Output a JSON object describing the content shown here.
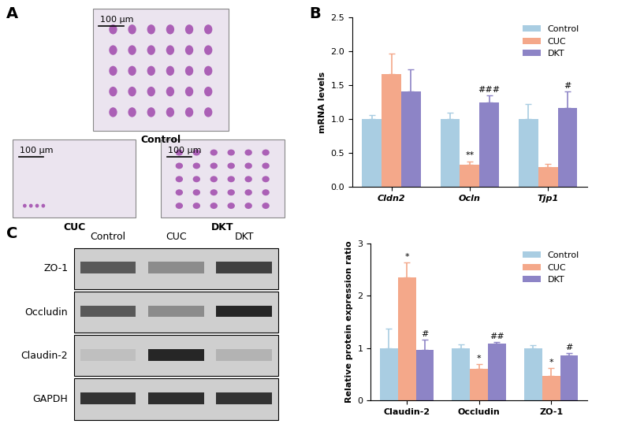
{
  "panel_labels": [
    "A",
    "B",
    "C"
  ],
  "histology": {
    "images": [
      {
        "label": "Control",
        "scale_bar": "100 μm"
      },
      {
        "label": "CUC",
        "scale_bar": "100 μm"
      },
      {
        "label": "DKT",
        "scale_bar": "100 μm"
      }
    ]
  },
  "western_blot": {
    "lanes": [
      "Control",
      "CUC",
      "DKT"
    ],
    "rows": [
      "ZO-1",
      "Occludin",
      "Claudin-2",
      "GAPDH"
    ]
  },
  "chart_data": [
    {
      "type": "bar",
      "y_label": "mRNA levels",
      "categories": [
        "Cldn2",
        "Ocln",
        "Tjp1"
      ],
      "series": [
        {
          "name": "Control",
          "color": "#a9cde2",
          "values": [
            1.0,
            1.0,
            1.0
          ],
          "errors": [
            0.06,
            0.1,
            0.22
          ],
          "significance": [
            null,
            null,
            null
          ]
        },
        {
          "name": "CUC",
          "color": "#f4a88a",
          "values": [
            1.67,
            0.33,
            0.29
          ],
          "errors": [
            0.3,
            0.05,
            0.05
          ],
          "significance": [
            null,
            "**",
            null
          ]
        },
        {
          "name": "DKT",
          "color": "#8d84c6",
          "values": [
            1.41,
            1.25,
            1.16
          ],
          "errors": [
            0.32,
            0.1,
            0.25
          ],
          "significance": [
            null,
            "###",
            "#"
          ]
        }
      ],
      "ylim": [
        0,
        2.5
      ],
      "yticks": [
        0.0,
        0.5,
        1.0,
        1.5,
        2.0,
        2.5
      ],
      "legend": "upper right"
    },
    {
      "type": "bar",
      "y_label": "Relative protein expression ratio",
      "categories": [
        "Claudin-2",
        "Occludin",
        "ZO-1"
      ],
      "series": [
        {
          "name": "Control",
          "color": "#a9cde2",
          "values": [
            1.0,
            1.0,
            1.0
          ],
          "errors": [
            0.37,
            0.07,
            0.05
          ],
          "significance": [
            null,
            null,
            null
          ]
        },
        {
          "name": "CUC",
          "color": "#f4a88a",
          "values": [
            2.36,
            0.6,
            0.46
          ],
          "errors": [
            0.28,
            0.09,
            0.15
          ],
          "significance": [
            "*",
            "*",
            "*"
          ]
        },
        {
          "name": "DKT",
          "color": "#8d84c6",
          "values": [
            0.96,
            1.08,
            0.86
          ],
          "errors": [
            0.2,
            0.04,
            0.05
          ],
          "significance": [
            "#",
            "##",
            "#"
          ]
        }
      ],
      "ylim": [
        0,
        3
      ],
      "yticks": [
        0,
        1,
        2,
        3
      ],
      "legend": "upper right"
    }
  ]
}
